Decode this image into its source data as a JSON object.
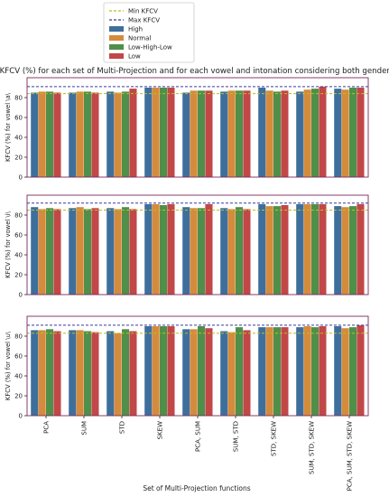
{
  "colors": {
    "min_line": "#bcbd22",
    "max_line": "#3b3b9a",
    "High": "#3e6f9c",
    "Normal": "#d58b3c",
    "Low-High-Low": "#4f8f4a",
    "Low": "#c24747",
    "panel_border": "#7a2a5a"
  },
  "chart_data": {
    "type": "bar",
    "title": "KFCV (%) for each set of Multi-Projection and for each vowel and intonation considering both genders",
    "xlabel": "Set of Multi-Projection functions",
    "categories": [
      "PCA",
      "SUM",
      "STD",
      "SKEW",
      "PCA, SUM",
      "SUM, STD",
      "STD, SKEW",
      "SUM, STD, SKEW",
      "PCA, SUM, STD, SKEW"
    ],
    "legend": {
      "placement": "top-center",
      "entries": [
        "Min KFCV",
        "Max KFCV",
        "High",
        "Normal",
        "Low-High-Low",
        "Low"
      ]
    },
    "ylim": [
      0,
      100
    ],
    "yticks": [
      0,
      20,
      40,
      60,
      80
    ],
    "panels": [
      {
        "ylabel": "KFCV (%) for vowel \\a\\",
        "min_kfcv": 84,
        "max_kfcv": 91,
        "series": [
          {
            "name": "High",
            "values": [
              85,
              85,
              86,
              90,
              85,
              86,
              90,
              86,
              89
            ]
          },
          {
            "name": "Normal",
            "values": [
              86,
              86,
              85,
              90,
              87,
              87,
              87,
              88,
              88
            ]
          },
          {
            "name": "Low-High-Low",
            "values": [
              86,
              86,
              86,
              90,
              87,
              87,
              86,
              89,
              90
            ]
          },
          {
            "name": "Low",
            "values": [
              85,
              85,
              89,
              90,
              87,
              87,
              87,
              91,
              90
            ]
          }
        ]
      },
      {
        "ylabel": "KFCV (%) for vowel \\i\\",
        "min_kfcv": 85,
        "max_kfcv": 92,
        "series": [
          {
            "name": "High",
            "values": [
              88,
              87,
              87,
              91,
              88,
              87,
              91,
              91,
              89
            ]
          },
          {
            "name": "Normal",
            "values": [
              86,
              88,
              86,
              91,
              87,
              86,
              89,
              91,
              88
            ]
          },
          {
            "name": "Low-High-Low",
            "values": [
              87,
              86,
              88,
              90,
              87,
              88,
              89,
              91,
              89
            ]
          },
          {
            "name": "Low",
            "values": [
              86,
              87,
              86,
              91,
              91,
              86,
              90,
              91,
              91
            ]
          }
        ]
      },
      {
        "ylabel": "KFCV (%) for vowel \\u\\",
        "min_kfcv": 83,
        "max_kfcv": 91,
        "series": [
          {
            "name": "High",
            "values": [
              86,
              86,
              85,
              90,
              87,
              85,
              89,
              89,
              90
            ]
          },
          {
            "name": "Normal",
            "values": [
              86,
              86,
              83,
              90,
              87,
              84,
              89,
              90,
              88
            ]
          },
          {
            "name": "Low-High-Low",
            "values": [
              87,
              85,
              87,
              90,
              90,
              89,
              89,
              89,
              89
            ]
          },
          {
            "name": "Low",
            "values": [
              85,
              84,
              85,
              90,
              88,
              86,
              89,
              90,
              91
            ]
          }
        ]
      }
    ]
  }
}
